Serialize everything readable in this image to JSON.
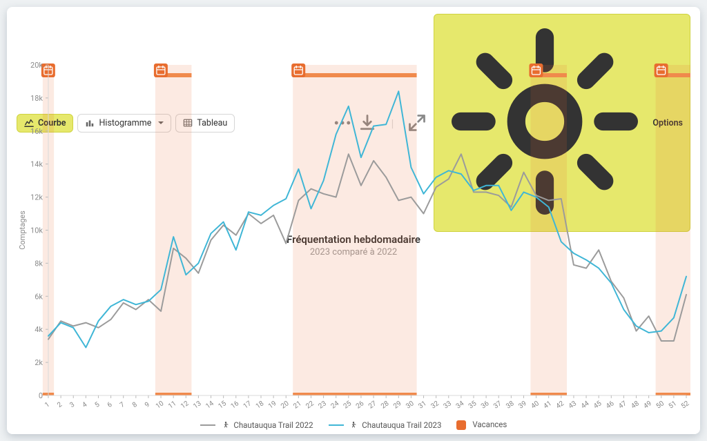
{
  "toolbar": {
    "courbe": "Courbe",
    "histogramme": "Histogramme",
    "tableau": "Tableau",
    "options": "Options"
  },
  "title": "Fréquentation hebdomadaire",
  "subtitle": "2023 comparé à 2022",
  "legend": {
    "series_2022": "Chautauqua Trail 2022",
    "series_2023": "Chautauqua Trail 2023",
    "vacances": "Vacances"
  },
  "chart": {
    "type": "line",
    "background_color": "#ffffff",
    "axis_text_color": "#8a8a8a",
    "grid_color": "#eeeeee",
    "series_2022_color": "#9b9b9b",
    "series_2023_color": "#3fb6d6",
    "vacances_fill": "#e86d2f",
    "vacances_fill_opacity": 0.14,
    "vacances_bar_color": "#f08a4c",
    "line_width": 2,
    "ylabel": "Comptages",
    "x_start": 1,
    "x_end": 52,
    "ylim": [
      0,
      20000
    ],
    "ytick_step": 2000,
    "ytick_labels": [
      "0",
      "2k",
      "4k",
      "6k",
      "8k",
      "10k",
      "12k",
      "14k",
      "16k",
      "18k",
      "20k"
    ],
    "vacances_ranges": [
      [
        1,
        1
      ],
      [
        10,
        12
      ],
      [
        21,
        30
      ],
      [
        40,
        42
      ],
      [
        50,
        52
      ]
    ],
    "series_2022": [
      3400,
      4500,
      4200,
      4400,
      4100,
      4600,
      5600,
      5200,
      5800,
      5100,
      8900,
      8300,
      7400,
      9400,
      10300,
      9700,
      11000,
      10400,
      10900,
      9200,
      11800,
      12500,
      12200,
      12000,
      14600,
      12700,
      14200,
      13200,
      11800,
      12000,
      11000,
      12600,
      13100,
      14600,
      12300,
      12300,
      12100,
      11400,
      13500,
      12100,
      11800,
      11900,
      7900,
      7700,
      8800,
      6900,
      5900,
      3900,
      4800,
      3300,
      3300,
      6100
    ],
    "series_2023": [
      3600,
      4400,
      4100,
      2900,
      4500,
      5400,
      5800,
      5500,
      5700,
      6400,
      9600,
      7300,
      8000,
      9800,
      10500,
      8800,
      11100,
      10900,
      11500,
      11900,
      13700,
      11300,
      13000,
      15800,
      17500,
      14400,
      16300,
      16400,
      18400,
      13800,
      12200,
      13200,
      13600,
      13400,
      12400,
      12700,
      12700,
      11200,
      12300,
      12000,
      11400,
      9300,
      8600,
      8200,
      7700,
      6800,
      5200,
      4200,
      3800,
      3900,
      4700,
      7200
    ]
  }
}
